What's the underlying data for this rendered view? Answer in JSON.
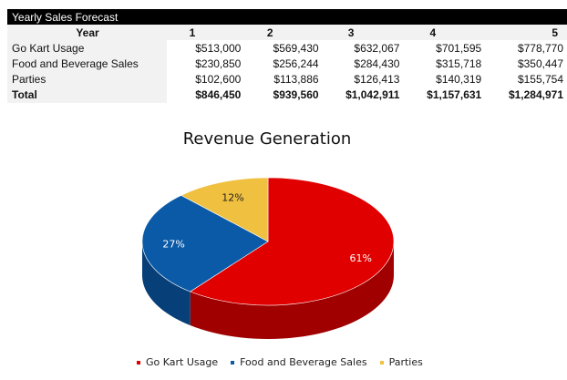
{
  "table": {
    "title": "Yearly Sales Forecast",
    "header": [
      "Year",
      "1",
      "2",
      "3",
      "4",
      "5"
    ],
    "rows": [
      [
        "Go Kart Usage",
        "$513,000",
        "$569,430",
        "$632,067",
        "$701,595",
        "$778,770"
      ],
      [
        "Food and Beverage Sales",
        "$230,850",
        "$256,244",
        "$284,430",
        "$315,718",
        "$350,447"
      ],
      [
        "Parties",
        "$102,600",
        "$113,886",
        "$126,413",
        "$140,319",
        "$155,754"
      ],
      [
        "Total",
        "$846,450",
        "$939,560",
        "$1,042,911",
        "$1,157,631",
        "$1,284,971"
      ]
    ]
  },
  "chart_data": {
    "type": "pie",
    "title": "Revenue Generation",
    "categories": [
      "Go Kart Usage",
      "Food and Beverage Sales",
      "Parties"
    ],
    "values": [
      513000,
      230850,
      102600
    ],
    "data_labels": [
      "61%",
      "27%",
      "12%"
    ],
    "colors": [
      "#e00000",
      "#0a5aa8",
      "#f0c040"
    ],
    "side_colors": [
      "#a00000",
      "#073f78",
      "#b08a20"
    ],
    "legend_position": "bottom",
    "style": "3d"
  }
}
